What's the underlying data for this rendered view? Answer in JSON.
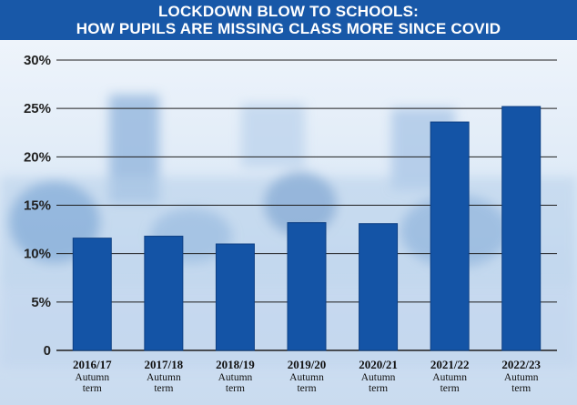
{
  "title_lines": [
    "LOCKDOWN BLOW TO SCHOOLS:",
    "HOW PUPILS ARE MISSING CLASS MORE SINCE COVID"
  ],
  "colors": {
    "title_bg": "#1858a8",
    "bar": "#1454a6",
    "bar_stroke": "#0d3f84",
    "grid": "#1e1e1e"
  },
  "chart_data": {
    "type": "bar",
    "title": "LOCKDOWN BLOW TO SCHOOLS: HOW PUPILS ARE MISSING CLASS MORE SINCE COVID",
    "categories": [
      "2016/17",
      "2017/18",
      "2018/19",
      "2019/20",
      "2020/21",
      "2021/22",
      "2022/23"
    ],
    "category_sublabels": [
      "Autumn",
      "term"
    ],
    "values": [
      11.6,
      11.8,
      11.0,
      13.2,
      13.1,
      23.6,
      25.2
    ],
    "ylim": [
      0,
      30
    ],
    "yticks": [
      0,
      5,
      10,
      15,
      20,
      25,
      30
    ],
    "ytick_labels": [
      "0",
      "5%",
      "10%",
      "15%",
      "20%",
      "25%",
      "30%"
    ],
    "xlabel": "",
    "ylabel": "",
    "grid": true
  }
}
